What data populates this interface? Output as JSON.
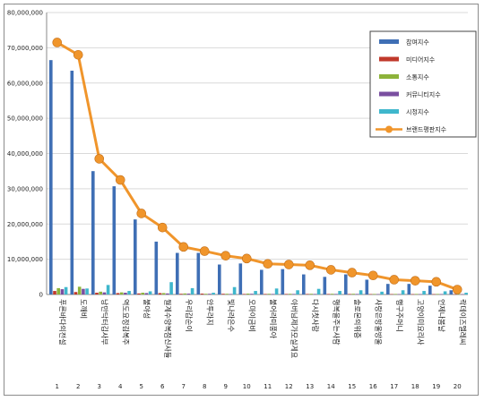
{
  "chart_data": {
    "type": "bar",
    "title": "",
    "xlabel": "",
    "ylabel": "",
    "ylim": [
      0,
      80000000
    ],
    "yticks": [
      "0",
      "10,000,000",
      "20,000,000",
      "30,000,000",
      "40,000,000",
      "50,000,000",
      "60,000,000",
      "70,000,000",
      "80,000,000"
    ],
    "grid": true,
    "legend_position": "right",
    "categories": [
      "푸른바다의전설",
      "도깨비",
      "낭만닥터김사부",
      "역도요정김복주",
      "불야성",
      "월계수양복점신사들",
      "우리갑순이",
      "안투라지",
      "빛나라은수",
      "오마이금비",
      "불어라미풍아",
      "아버님제가모실게요",
      "다시첫사랑",
      "행복을주는사람",
      "솔로몬의위증",
      "사랑은방울방울",
      "행구주머니",
      "고양이미요리사",
      "언제나봄날",
      "락데이즈멜레씨"
    ],
    "index_labels": [
      "1",
      "2",
      "3",
      "4",
      "5",
      "6",
      "7",
      "8",
      "9",
      "10",
      "11",
      "12",
      "13",
      "14",
      "15",
      "16",
      "17",
      "18",
      "19",
      "20"
    ],
    "series": [
      {
        "name": "참여지수",
        "type": "bar",
        "color": "#3f6fb5",
        "values": [
          66500000,
          63500000,
          35000000,
          30700000,
          21300000,
          15000000,
          11800000,
          11800000,
          8500000,
          8800000,
          7000000,
          7200000,
          5700000,
          5000000,
          5700000,
          4200000,
          3000000,
          3000000,
          2500000,
          1200000
        ]
      },
      {
        "name": "미디어지수",
        "type": "bar",
        "color": "#c0392b",
        "values": [
          1000000,
          700000,
          500000,
          400000,
          300000,
          400000,
          200000,
          250000,
          200000,
          150000,
          150000,
          150000,
          150000,
          150000,
          150000,
          120000,
          120000,
          100000,
          100000,
          80000
        ]
      },
      {
        "name": "소통지수",
        "type": "bar",
        "color": "#8db33a",
        "values": [
          1800000,
          2200000,
          800000,
          600000,
          500000,
          400000,
          300000,
          200000,
          200000,
          250000,
          200000,
          200000,
          200000,
          200000,
          200000,
          150000,
          150000,
          150000,
          150000,
          100000
        ]
      },
      {
        "name": "커뮤니티지수",
        "type": "bar",
        "color": "#7a4fa0",
        "values": [
          1500000,
          1600000,
          600000,
          500000,
          400000,
          300000,
          250000,
          200000,
          150000,
          200000,
          150000,
          150000,
          150000,
          150000,
          150000,
          100000,
          100000,
          100000,
          100000,
          80000
        ]
      },
      {
        "name": "시청지수",
        "type": "bar",
        "color": "#3fb7cc",
        "values": [
          2100000,
          1700000,
          2700000,
          1000000,
          900000,
          3500000,
          1800000,
          500000,
          2100000,
          1000000,
          1700000,
          1200000,
          1600000,
          1000000,
          1200000,
          800000,
          1200000,
          1000000,
          900000,
          500000
        ]
      },
      {
        "name": "브랜드평판지수",
        "type": "line",
        "color": "#f0952b",
        "values": [
          71500000,
          68000000,
          38500000,
          32500000,
          23000000,
          19000000,
          13500000,
          12300000,
          11000000,
          10200000,
          8700000,
          8500000,
          8300000,
          7000000,
          6200000,
          5400000,
          4200000,
          3900000,
          3600000,
          1400000
        ]
      }
    ]
  }
}
